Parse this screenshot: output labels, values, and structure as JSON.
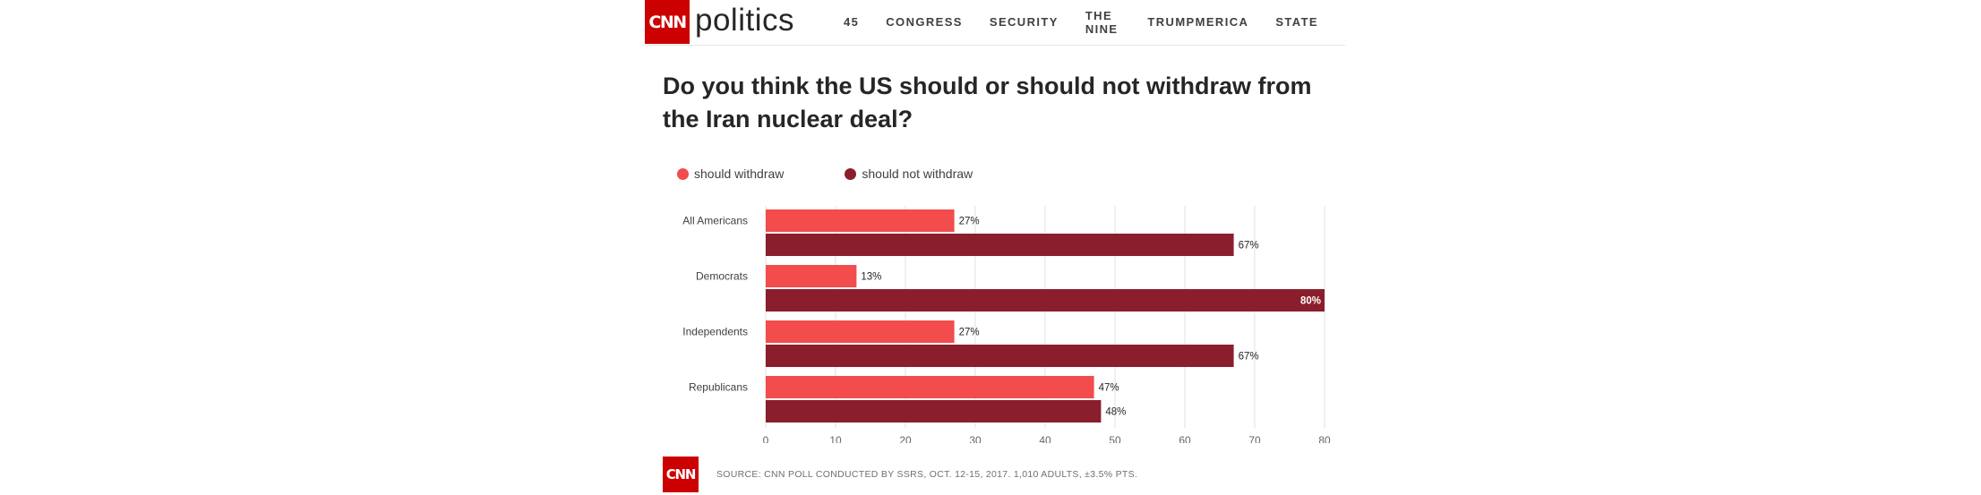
{
  "header": {
    "logo_text": "CNN",
    "section": "politics",
    "nav": [
      "45",
      "CONGRESS",
      "SECURITY",
      "THE NINE",
      "TRUMPMERICA",
      "STATE"
    ]
  },
  "footer": {
    "logo_text": "CNN",
    "source": "SOURCE: CNN POLL CONDUCTED BY SSRS, OCT. 12-15, 2017. 1,010 ADULTS, ±3.5% PTS."
  },
  "chart_data": {
    "type": "bar",
    "orientation": "horizontal",
    "title": "Do you think the US should or should not withdraw from the Iran nuclear deal?",
    "categories": [
      "All Americans",
      "Democrats",
      "Independents",
      "Republicans"
    ],
    "series": [
      {
        "name": "should withdraw",
        "values": [
          27,
          13,
          27,
          47
        ],
        "color": "#f24c4c"
      },
      {
        "name": "should not withdraw",
        "values": [
          67,
          80,
          67,
          48
        ],
        "color": "#8b1e2c"
      }
    ],
    "value_suffix": "%",
    "xlim": [
      0,
      80
    ],
    "xticks": [
      0,
      10,
      20,
      30,
      40,
      50,
      60,
      70,
      80
    ],
    "grid": true,
    "legend_position": "top-left"
  }
}
